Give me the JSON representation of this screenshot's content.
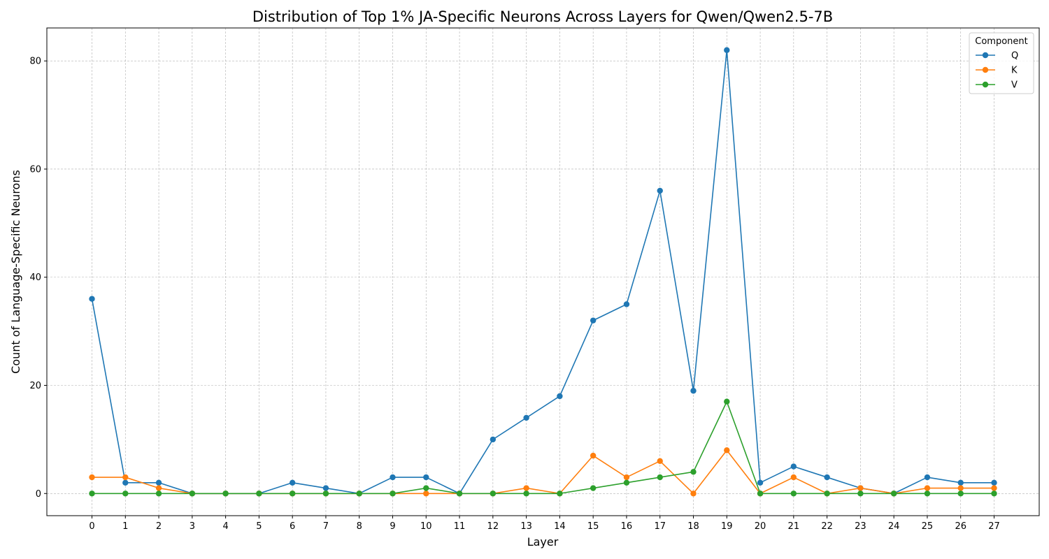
{
  "chart_data": {
    "type": "line",
    "title": "Distribution of Top 1% JA-Specific Neurons Across Layers for Qwen/Qwen2.5-7B",
    "xlabel": "Layer",
    "ylabel": "Count of Language-Specific Neurons",
    "x": [
      0,
      1,
      2,
      3,
      4,
      5,
      6,
      7,
      8,
      9,
      10,
      11,
      12,
      13,
      14,
      15,
      16,
      17,
      18,
      19,
      20,
      21,
      22,
      23,
      24,
      25,
      26,
      27
    ],
    "xlim": [
      -1.35,
      28.35
    ],
    "ylim": [
      -4.1,
      86.1
    ],
    "yticks": [
      0,
      20,
      40,
      60,
      80
    ],
    "grid": true,
    "legend": {
      "title": "Component",
      "placement": "top-right"
    },
    "series": [
      {
        "name": "Q",
        "color": "#1f77b4",
        "values": [
          36,
          2,
          2,
          0,
          0,
          0,
          2,
          1,
          0,
          3,
          3,
          0,
          10,
          14,
          18,
          32,
          35,
          56,
          19,
          82,
          2,
          5,
          3,
          1,
          0,
          3,
          2,
          2
        ]
      },
      {
        "name": "K",
        "color": "#ff7f0e",
        "values": [
          3,
          3,
          1,
          0,
          0,
          0,
          0,
          0,
          0,
          0,
          0,
          0,
          0,
          1,
          0,
          7,
          3,
          6,
          0,
          8,
          0,
          3,
          0,
          1,
          0,
          1,
          1,
          1
        ]
      },
      {
        "name": "V",
        "color": "#2ca02c",
        "values": [
          0,
          0,
          0,
          0,
          0,
          0,
          0,
          0,
          0,
          0,
          1,
          0,
          0,
          0,
          0,
          1,
          2,
          3,
          4,
          17,
          0,
          0,
          0,
          0,
          0,
          0,
          0,
          0
        ]
      }
    ]
  }
}
